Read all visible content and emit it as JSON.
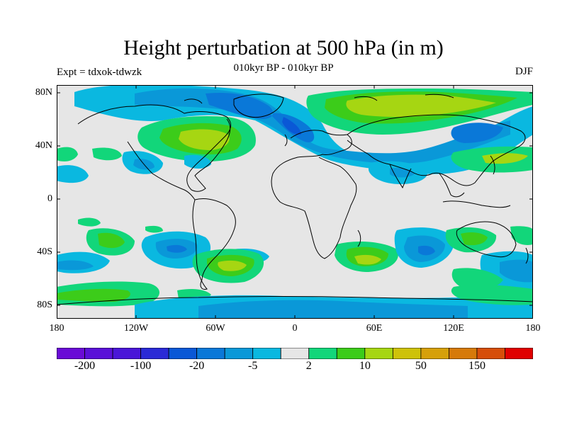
{
  "title": "Height perturbation at 500 hPa (in m)",
  "subtitle": "010kyr BP - 010kyr BP",
  "left_label": "Expt = tdxok-tdwzk",
  "right_label": "DJF",
  "lat_ticks": [
    "80N",
    "40N",
    "0",
    "40S",
    "80S"
  ],
  "lon_ticks": [
    "180",
    "120W",
    "60W",
    "0",
    "60E",
    "120E",
    "180"
  ],
  "colorbar": {
    "colors": [
      "#6a0bd6",
      "#5a10d8",
      "#4a16d8",
      "#2a2ad6",
      "#0a58d6",
      "#0a78d8",
      "#0a98d8",
      "#0ab8e0",
      "#e6e6e6",
      "#12d67a",
      "#3ccc1a",
      "#a6d612",
      "#cec20a",
      "#d6a00a",
      "#d67a0a",
      "#d64e0a",
      "#e00000"
    ],
    "labels": [
      "-200",
      "-100",
      "-20",
      "-5",
      "2",
      "10",
      "50",
      "150"
    ]
  }
}
